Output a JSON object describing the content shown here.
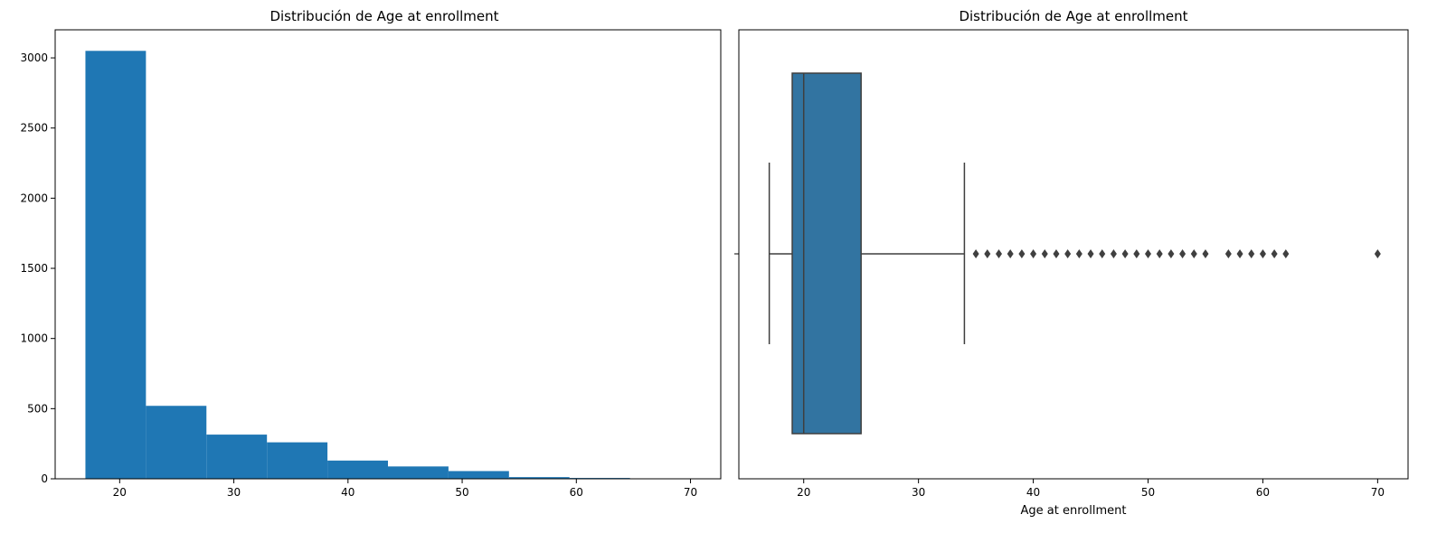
{
  "chart_data": [
    {
      "type": "bar",
      "subtype": "histogram",
      "title": "Distribución de Age at enrollment",
      "xlabel": "",
      "ylabel": "",
      "bin_edges": [
        17,
        22.3,
        27.6,
        32.9,
        38.2,
        43.5,
        48.8,
        54.1,
        59.4,
        64.7,
        70
      ],
      "values": [
        3050,
        520,
        315,
        260,
        130,
        88,
        55,
        12,
        6,
        2
      ],
      "xlim": [
        14.35,
        72.65
      ],
      "ylim": [
        0,
        3200
      ],
      "xticks": [
        20,
        30,
        40,
        50,
        60,
        70
      ],
      "yticks": [
        0,
        500,
        1000,
        1500,
        2000,
        2500,
        3000
      ],
      "grid": false,
      "color": "#1f77b4"
    },
    {
      "type": "box",
      "orientation": "horizontal",
      "title": "Distribución de Age at enrollment",
      "xlabel": "Age at enrollment",
      "ylabel": "",
      "stats": {
        "whisker_low": 17,
        "q1": 19,
        "median": 20,
        "q3": 25,
        "whisker_high": 34
      },
      "outliers": [
        35,
        36,
        37,
        38,
        39,
        40,
        41,
        42,
        43,
        44,
        45,
        46,
        47,
        48,
        49,
        50,
        51,
        52,
        53,
        54,
        55,
        57,
        58,
        59,
        60,
        61,
        62,
        70
      ],
      "xlim": [
        14.35,
        72.65
      ],
      "xticks": [
        20,
        30,
        40,
        50,
        60,
        70
      ],
      "grid": false,
      "box_color": "#3274a1",
      "line_color": "#3f3f3f"
    }
  ]
}
